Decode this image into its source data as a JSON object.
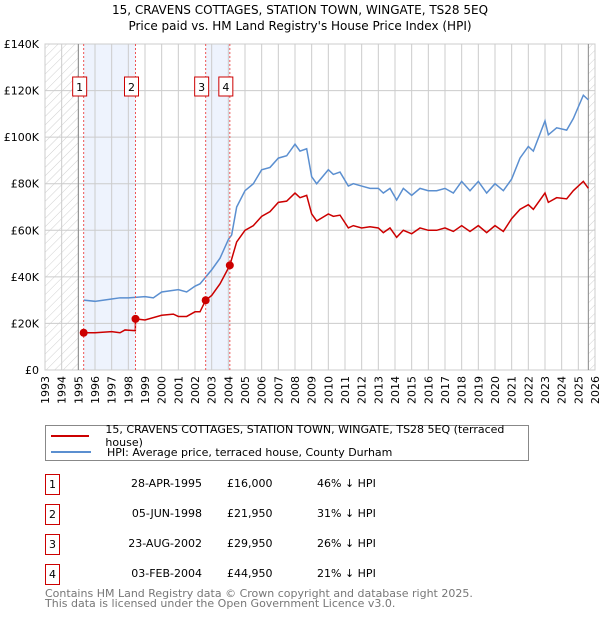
{
  "chart_data": {
    "type": "line",
    "title": "15, CRAVENS COTTAGES, STATION TOWN, WINGATE, TS28 5EQ",
    "subtitle": "Price paid vs. HM Land Registry's House Price Index (HPI)",
    "xlim": [
      1993,
      2026
    ],
    "ylim": [
      0,
      140000
    ],
    "x_ticks": [
      1993,
      1994,
      1995,
      1996,
      1997,
      1998,
      1999,
      2000,
      2001,
      2002,
      2003,
      2004,
      2005,
      2006,
      2007,
      2008,
      2009,
      2010,
      2011,
      2012,
      2013,
      2014,
      2015,
      2016,
      2017,
      2018,
      2019,
      2020,
      2021,
      2022,
      2023,
      2024,
      2025,
      2026
    ],
    "y_ticks": [
      0,
      20000,
      40000,
      60000,
      80000,
      100000,
      120000,
      140000
    ],
    "y_tick_labels": [
      "£0",
      "£20K",
      "£40K",
      "£60K",
      "£80K",
      "£100K",
      "£120K",
      "£140K"
    ],
    "grid": true,
    "hatched_ranges": [
      [
        1993,
        1995
      ],
      [
        2025.6,
        2026
      ]
    ],
    "shaded_ranges": [
      [
        1995.32,
        1998.43
      ],
      [
        2002.64,
        2004.09
      ]
    ],
    "series": [
      {
        "name": "15, CRAVENS COTTAGES, STATION TOWN, WINGATE, TS28 5EQ (terraced house)",
        "color": "#cc0000",
        "x": [
          1995.32,
          1996,
          1997,
          1997.5,
          1997.8,
          1998.42,
          1998.43,
          1999,
          2000,
          2000.7,
          2001,
          2001.5,
          2002,
          2002.3,
          2002.64,
          2003,
          2003.5,
          2004.09,
          2004.5,
          2005,
          2005.5,
          2006,
          2006.5,
          2007,
          2007.5,
          2008,
          2008.3,
          2008.7,
          2009,
          2009.3,
          2010,
          2010.3,
          2010.7,
          2011.2,
          2011.5,
          2012,
          2012.5,
          2013,
          2013.3,
          2013.7,
          2014.1,
          2014.5,
          2015,
          2015.5,
          2016,
          2016.5,
          2017,
          2017.5,
          2018,
          2018.5,
          2019,
          2019.5,
          2020,
          2020.5,
          2021,
          2021.5,
          2022,
          2022.3,
          2023,
          2023.2,
          2023.7,
          2024.3,
          2024.7,
          2025.3,
          2025.6
        ],
        "y": [
          16000,
          16000,
          16500,
          16000,
          17200,
          16900,
          21950,
          21500,
          23500,
          24000,
          23000,
          23000,
          25000,
          25000,
          29950,
          32000,
          37000,
          44950,
          55000,
          60000,
          62000,
          66000,
          68000,
          72000,
          72500,
          76000,
          74000,
          75000,
          67000,
          64000,
          67000,
          66000,
          66500,
          61000,
          62000,
          61000,
          61500,
          61000,
          59000,
          61000,
          57000,
          60000,
          58500,
          61000,
          60000,
          60000,
          61000,
          59500,
          62000,
          59500,
          62000,
          59000,
          62000,
          59500,
          65000,
          69000,
          71000,
          69000,
          76000,
          72000,
          74000,
          73500,
          77000,
          81000,
          78000
        ]
      },
      {
        "name": "HPI: Average price, terraced house, County Durham",
        "color": "#5b8fd0",
        "x": [
          1995.32,
          1996,
          1997,
          1997.5,
          1998,
          1999,
          1999.5,
          2000,
          2001,
          2001.5,
          2002,
          2002.3,
          2003,
          2003.5,
          2004,
          2004.2,
          2004.5,
          2005,
          2005.5,
          2006,
          2006.5,
          2007,
          2007.5,
          2008,
          2008.3,
          2008.7,
          2009,
          2009.3,
          2010,
          2010.3,
          2010.7,
          2011.2,
          2011.5,
          2012,
          2012.5,
          2013,
          2013.3,
          2013.7,
          2014.1,
          2014.5,
          2015,
          2015.5,
          2016,
          2016.5,
          2017,
          2017.5,
          2018,
          2018.5,
          2019,
          2019.5,
          2020,
          2020.5,
          2021,
          2021.5,
          2022,
          2022.3,
          2023,
          2023.2,
          2023.7,
          2024.3,
          2024.7,
          2025,
          2025.3,
          2025.6
        ],
        "y": [
          30000,
          29500,
          30500,
          31000,
          31000,
          31500,
          31000,
          33500,
          34500,
          33500,
          36000,
          37000,
          43000,
          48000,
          56000,
          58000,
          70000,
          77000,
          80000,
          86000,
          87000,
          91000,
          92000,
          97000,
          94000,
          95000,
          83000,
          80000,
          86000,
          84000,
          85000,
          79000,
          80000,
          79000,
          78000,
          78000,
          76000,
          78000,
          73000,
          78000,
          75000,
          78000,
          77000,
          77000,
          78000,
          76000,
          81000,
          77000,
          81000,
          76000,
          80000,
          77000,
          82000,
          91000,
          96000,
          94000,
          107000,
          101000,
          104000,
          103000,
          108000,
          113000,
          118000,
          116000
        ]
      }
    ],
    "sales": [
      {
        "label": "1",
        "x": 1995.32,
        "y": 16000,
        "date": "28-APR-1995",
        "price": "£16,000",
        "hpi": "46% ↓ HPI"
      },
      {
        "label": "2",
        "x": 1998.43,
        "y": 21950,
        "date": "05-JUN-1998",
        "price": "£21,950",
        "hpi": "31% ↓ HPI"
      },
      {
        "label": "3",
        "x": 2002.64,
        "y": 29950,
        "date": "23-AUG-2002",
        "price": "£29,950",
        "hpi": "26% ↓ HPI"
      },
      {
        "label": "4",
        "x": 2004.09,
        "y": 44950,
        "date": "03-FEB-2004",
        "price": "£44,950",
        "hpi": "21% ↓ HPI"
      }
    ]
  },
  "legend": {
    "red_label": "15, CRAVENS COTTAGES, STATION TOWN, WINGATE, TS28 5EQ (terraced house)",
    "blue_label": "HPI: Average price, terraced house, County Durham"
  },
  "footer": {
    "line1": "Contains HM Land Registry data © Crown copyright and database right 2025.",
    "line2": "This data is licensed under the Open Government Licence v3.0."
  }
}
